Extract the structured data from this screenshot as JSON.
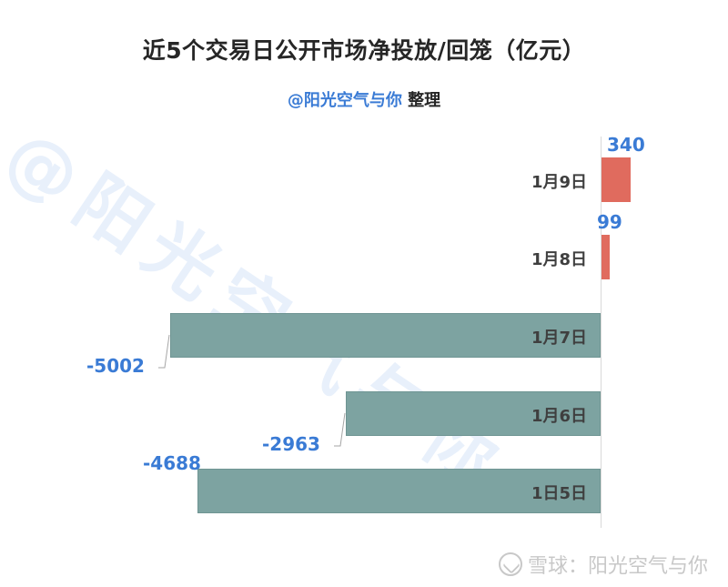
{
  "header": {
    "title": "近5个交易日公开市场净投放/回笼（亿元）",
    "subtitle_handle": "@阳光空气与你",
    "subtitle_suffix": " 整理"
  },
  "watermark": {
    "diagonal_text": "@阳光空气与你",
    "footer_text": "雪球：阳光空气与你",
    "footer_icon": "snowball-logo-icon"
  },
  "colors": {
    "positive": "#e06b5e",
    "negative": "#7da3a1",
    "value_label": "#3a7bd5",
    "category_label": "#3f3f3f"
  },
  "chart_data": {
    "type": "bar",
    "orientation": "horizontal",
    "title": "近5个交易日公开市场净投放/回笼（亿元）",
    "subtitle": "@阳光空气与你 整理",
    "xlabel": "",
    "ylabel": "",
    "unit": "亿元",
    "categories": [
      "1月9日",
      "1月8日",
      "1月7日",
      "1月6日",
      "1日5日"
    ],
    "values": [
      340,
      99,
      -5002,
      -2963,
      -4688
    ],
    "value_labels": [
      "340",
      "99",
      "-5002",
      "-2963",
      "-4688"
    ],
    "grid": false,
    "legend": null,
    "xlim": [
      -5002,
      340
    ]
  }
}
